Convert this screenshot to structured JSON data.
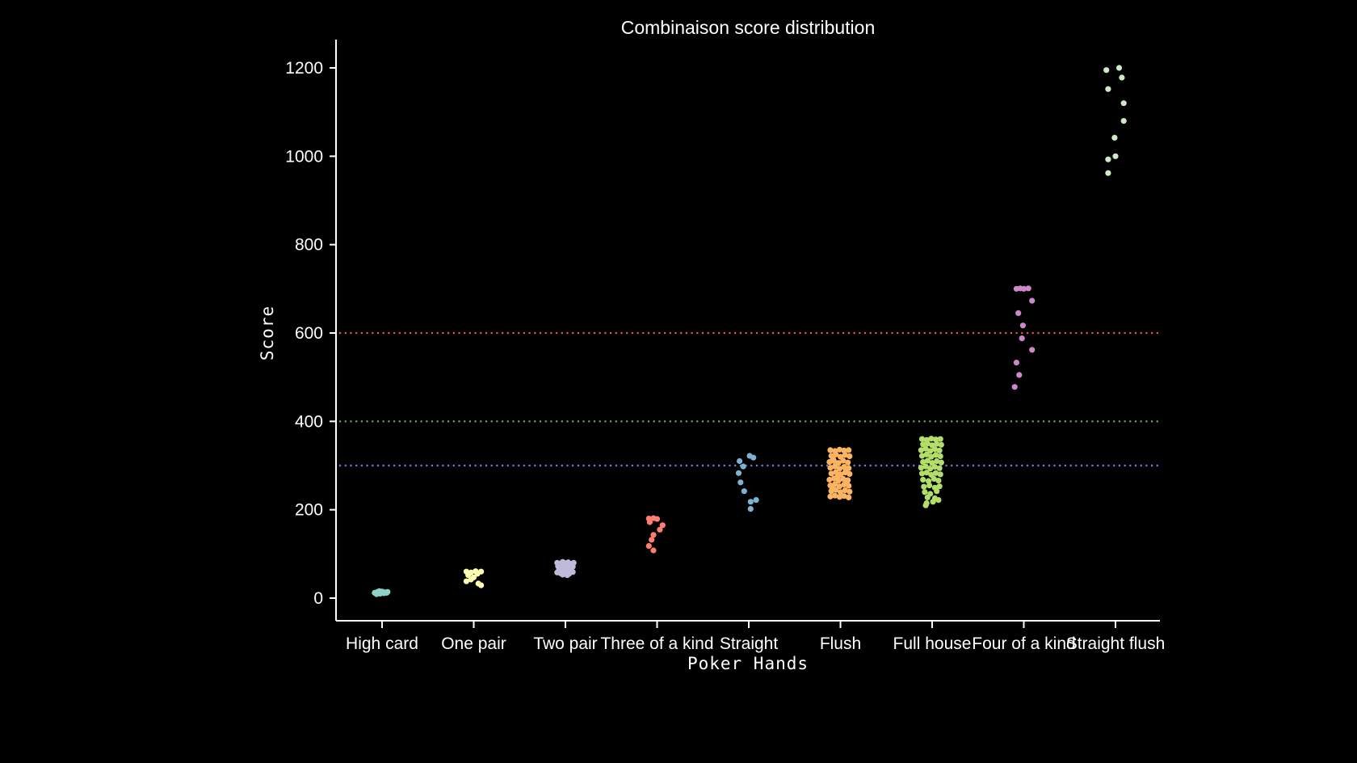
{
  "chart_data": {
    "type": "scatter",
    "title": "Combinaison score distribution",
    "xlabel": "Poker Hands",
    "ylabel": "Score",
    "ylim": [
      -50,
      1240
    ],
    "yticks": [
      0,
      200,
      400,
      600,
      800,
      1000,
      1200
    ],
    "grid": false,
    "reference_lines": [
      {
        "y": 300,
        "color": "#6b7fd7"
      },
      {
        "y": 400,
        "color": "#6ab04c"
      },
      {
        "y": 600,
        "color": "#e0594b"
      }
    ],
    "categories": [
      "High card",
      "One pair",
      "Two pair",
      "Three of a kind",
      "Straight",
      "Flush",
      "Full house",
      "Four of a kind",
      "Straight flush"
    ],
    "series": [
      {
        "category": "High card",
        "color": "#8dd3c7",
        "points": [
          {
            "j": -0.08,
            "y": 12
          },
          {
            "j": -0.05,
            "y": 14
          },
          {
            "j": -0.02,
            "y": 10
          },
          {
            "j": 0.0,
            "y": 15
          },
          {
            "j": 0.03,
            "y": 13
          },
          {
            "j": 0.06,
            "y": 14
          },
          {
            "j": -0.06,
            "y": 9
          },
          {
            "j": 0.02,
            "y": 11
          },
          {
            "j": -0.03,
            "y": 16
          },
          {
            "j": 0.05,
            "y": 12
          }
        ]
      },
      {
        "category": "One pair",
        "color": "#ffffb3",
        "points": [
          {
            "j": -0.08,
            "y": 60
          },
          {
            "j": -0.03,
            "y": 58
          },
          {
            "j": 0.02,
            "y": 61
          },
          {
            "j": 0.08,
            "y": 60
          },
          {
            "j": -0.06,
            "y": 52
          },
          {
            "j": 0.0,
            "y": 47
          },
          {
            "j": -0.03,
            "y": 42
          },
          {
            "j": -0.08,
            "y": 38
          },
          {
            "j": 0.05,
            "y": 33
          },
          {
            "j": 0.08,
            "y": 29
          },
          {
            "j": 0.04,
            "y": 55
          }
        ]
      },
      {
        "category": "Two pair",
        "color": "#bebada",
        "points": [
          {
            "j": -0.09,
            "y": 80
          },
          {
            "j": -0.06,
            "y": 78
          },
          {
            "j": -0.03,
            "y": 82
          },
          {
            "j": 0.0,
            "y": 79
          },
          {
            "j": 0.03,
            "y": 81
          },
          {
            "j": 0.06,
            "y": 77
          },
          {
            "j": 0.09,
            "y": 80
          },
          {
            "j": -0.08,
            "y": 72
          },
          {
            "j": -0.04,
            "y": 70
          },
          {
            "j": 0.01,
            "y": 73
          },
          {
            "j": 0.05,
            "y": 69
          },
          {
            "j": 0.08,
            "y": 71
          },
          {
            "j": -0.07,
            "y": 65
          },
          {
            "j": -0.02,
            "y": 63
          },
          {
            "j": 0.02,
            "y": 66
          },
          {
            "j": 0.06,
            "y": 62
          },
          {
            "j": -0.09,
            "y": 58
          },
          {
            "j": -0.05,
            "y": 56
          },
          {
            "j": 0.0,
            "y": 57
          },
          {
            "j": 0.04,
            "y": 55
          },
          {
            "j": 0.08,
            "y": 59
          },
          {
            "j": -0.03,
            "y": 53
          },
          {
            "j": 0.02,
            "y": 52
          },
          {
            "j": -0.06,
            "y": 60
          },
          {
            "j": 0.07,
            "y": 74
          }
        ]
      },
      {
        "category": "Three of a kind",
        "color": "#fb8072",
        "points": [
          {
            "j": -0.09,
            "y": 180
          },
          {
            "j": -0.04,
            "y": 181
          },
          {
            "j": 0.0,
            "y": 179
          },
          {
            "j": -0.08,
            "y": 172
          },
          {
            "j": 0.06,
            "y": 165
          },
          {
            "j": 0.03,
            "y": 155
          },
          {
            "j": -0.04,
            "y": 143
          },
          {
            "j": -0.06,
            "y": 132
          },
          {
            "j": -0.09,
            "y": 118
          },
          {
            "j": -0.04,
            "y": 108
          }
        ]
      },
      {
        "category": "Straight",
        "color": "#80b1d3",
        "points": [
          {
            "j": -0.1,
            "y": 310
          },
          {
            "j": 0.01,
            "y": 322
          },
          {
            "j": 0.05,
            "y": 318
          },
          {
            "j": -0.06,
            "y": 298
          },
          {
            "j": -0.11,
            "y": 283
          },
          {
            "j": -0.09,
            "y": 262
          },
          {
            "j": -0.05,
            "y": 242
          },
          {
            "j": 0.08,
            "y": 222
          },
          {
            "j": 0.02,
            "y": 218
          },
          {
            "j": 0.02,
            "y": 202
          }
        ]
      },
      {
        "category": "Flush",
        "color": "#fdb462",
        "points": [
          {
            "j": -0.11,
            "y": 335
          },
          {
            "j": -0.06,
            "y": 333
          },
          {
            "j": -0.01,
            "y": 336
          },
          {
            "j": 0.04,
            "y": 334
          },
          {
            "j": 0.09,
            "y": 335
          },
          {
            "j": -0.1,
            "y": 322
          },
          {
            "j": -0.05,
            "y": 325
          },
          {
            "j": 0.0,
            "y": 320
          },
          {
            "j": 0.05,
            "y": 324
          },
          {
            "j": 0.1,
            "y": 321
          },
          {
            "j": -0.12,
            "y": 308
          },
          {
            "j": -0.07,
            "y": 310
          },
          {
            "j": -0.02,
            "y": 306
          },
          {
            "j": 0.03,
            "y": 311
          },
          {
            "j": 0.08,
            "y": 307
          },
          {
            "j": -0.11,
            "y": 295
          },
          {
            "j": -0.06,
            "y": 298
          },
          {
            "j": -0.01,
            "y": 293
          },
          {
            "j": 0.04,
            "y": 297
          },
          {
            "j": 0.09,
            "y": 294
          },
          {
            "j": -0.1,
            "y": 282
          },
          {
            "j": -0.05,
            "y": 285
          },
          {
            "j": 0.0,
            "y": 280
          },
          {
            "j": 0.05,
            "y": 284
          },
          {
            "j": 0.1,
            "y": 281
          },
          {
            "j": -0.12,
            "y": 268
          },
          {
            "j": -0.07,
            "y": 271
          },
          {
            "j": -0.02,
            "y": 266
          },
          {
            "j": 0.03,
            "y": 270
          },
          {
            "j": 0.08,
            "y": 267
          },
          {
            "j": -0.11,
            "y": 255
          },
          {
            "j": -0.06,
            "y": 258
          },
          {
            "j": -0.01,
            "y": 253
          },
          {
            "j": 0.04,
            "y": 257
          },
          {
            "j": 0.09,
            "y": 254
          },
          {
            "j": -0.1,
            "y": 242
          },
          {
            "j": -0.05,
            "y": 245
          },
          {
            "j": 0.0,
            "y": 240
          },
          {
            "j": 0.05,
            "y": 244
          },
          {
            "j": 0.1,
            "y": 241
          },
          {
            "j": -0.11,
            "y": 230
          },
          {
            "j": -0.06,
            "y": 232
          },
          {
            "j": -0.01,
            "y": 229
          },
          {
            "j": 0.04,
            "y": 231
          },
          {
            "j": 0.09,
            "y": 228
          },
          {
            "j": -0.08,
            "y": 315
          },
          {
            "j": 0.06,
            "y": 290
          },
          {
            "j": -0.03,
            "y": 275
          },
          {
            "j": 0.07,
            "y": 262
          },
          {
            "j": -0.09,
            "y": 248
          }
        ]
      },
      {
        "category": "Full house",
        "color": "#b3de69",
        "points": [
          {
            "j": -0.11,
            "y": 360
          },
          {
            "j": -0.06,
            "y": 358
          },
          {
            "j": -0.01,
            "y": 361
          },
          {
            "j": 0.04,
            "y": 359
          },
          {
            "j": 0.09,
            "y": 360
          },
          {
            "j": -0.1,
            "y": 348
          },
          {
            "j": -0.05,
            "y": 350
          },
          {
            "j": 0.0,
            "y": 346
          },
          {
            "j": 0.05,
            "y": 349
          },
          {
            "j": 0.1,
            "y": 347
          },
          {
            "j": -0.12,
            "y": 335
          },
          {
            "j": -0.07,
            "y": 338
          },
          {
            "j": -0.02,
            "y": 333
          },
          {
            "j": 0.03,
            "y": 337
          },
          {
            "j": 0.08,
            "y": 334
          },
          {
            "j": -0.11,
            "y": 322
          },
          {
            "j": -0.06,
            "y": 325
          },
          {
            "j": -0.01,
            "y": 320
          },
          {
            "j": 0.04,
            "y": 324
          },
          {
            "j": 0.09,
            "y": 321
          },
          {
            "j": -0.1,
            "y": 308
          },
          {
            "j": -0.05,
            "y": 311
          },
          {
            "j": 0.0,
            "y": 306
          },
          {
            "j": 0.05,
            "y": 310
          },
          {
            "j": 0.1,
            "y": 307
          },
          {
            "j": -0.12,
            "y": 295
          },
          {
            "j": -0.07,
            "y": 298
          },
          {
            "j": -0.02,
            "y": 293
          },
          {
            "j": 0.03,
            "y": 297
          },
          {
            "j": 0.08,
            "y": 294
          },
          {
            "j": -0.11,
            "y": 282
          },
          {
            "j": -0.06,
            "y": 284
          },
          {
            "j": -0.01,
            "y": 279
          },
          {
            "j": 0.04,
            "y": 283
          },
          {
            "j": 0.09,
            "y": 280
          },
          {
            "j": -0.1,
            "y": 268
          },
          {
            "j": -0.04,
            "y": 265
          },
          {
            "j": 0.02,
            "y": 270
          },
          {
            "j": 0.07,
            "y": 266
          },
          {
            "j": -0.09,
            "y": 252
          },
          {
            "j": -0.03,
            "y": 255
          },
          {
            "j": 0.03,
            "y": 250
          },
          {
            "j": 0.08,
            "y": 253
          },
          {
            "j": -0.08,
            "y": 240
          },
          {
            "j": -0.02,
            "y": 236
          },
          {
            "j": 0.05,
            "y": 242
          },
          {
            "j": -0.05,
            "y": 228
          },
          {
            "j": 0.03,
            "y": 226
          },
          {
            "j": 0.07,
            "y": 222
          },
          {
            "j": -0.06,
            "y": 215
          },
          {
            "j": 0.01,
            "y": 218
          },
          {
            "j": -0.07,
            "y": 210
          }
        ]
      },
      {
        "category": "Four of a kind",
        "color": "#ce87c8",
        "points": [
          {
            "j": -0.08,
            "y": 700
          },
          {
            "j": -0.04,
            "y": 701
          },
          {
            "j": 0.0,
            "y": 700
          },
          {
            "j": 0.05,
            "y": 701
          },
          {
            "j": 0.09,
            "y": 673
          },
          {
            "j": -0.06,
            "y": 645
          },
          {
            "j": -0.01,
            "y": 617
          },
          {
            "j": -0.02,
            "y": 588
          },
          {
            "j": 0.09,
            "y": 562
          },
          {
            "j": -0.08,
            "y": 533
          },
          {
            "j": -0.05,
            "y": 505
          },
          {
            "j": -0.1,
            "y": 478
          }
        ]
      },
      {
        "category": "Straight flush",
        "color": "#ccebc5",
        "points": [
          {
            "j": -0.1,
            "y": 1195
          },
          {
            "j": 0.04,
            "y": 1200
          },
          {
            "j": 0.07,
            "y": 1178
          },
          {
            "j": -0.08,
            "y": 1152
          },
          {
            "j": 0.09,
            "y": 1120
          },
          {
            "j": 0.09,
            "y": 1080
          },
          {
            "j": -0.01,
            "y": 1042
          },
          {
            "j": 0.0,
            "y": 1000
          },
          {
            "j": -0.08,
            "y": 993
          },
          {
            "j": -0.08,
            "y": 962
          }
        ]
      }
    ]
  }
}
